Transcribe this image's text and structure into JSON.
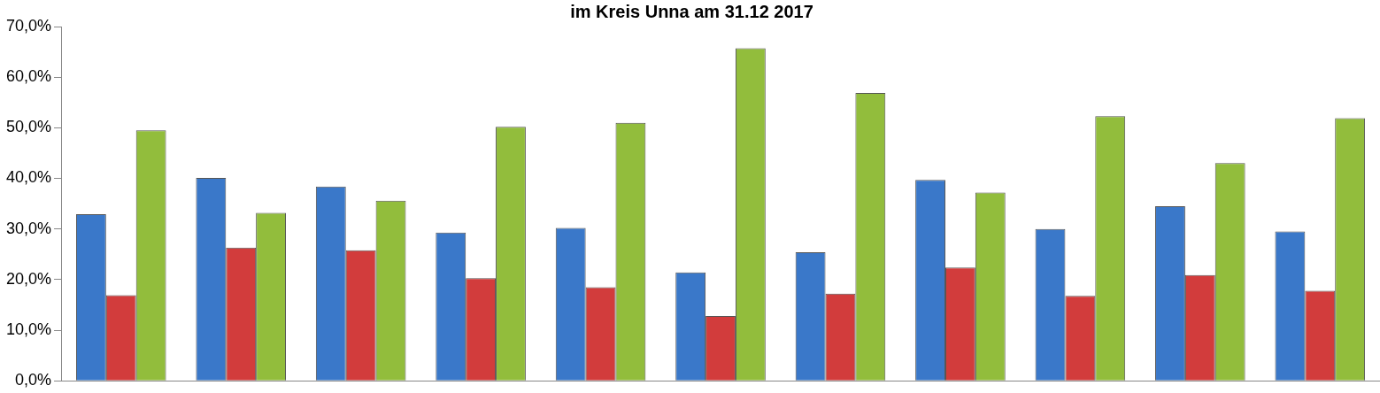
{
  "chart_data": {
    "type": "bar",
    "title": "im Kreis Unna am 31.12 2017",
    "categories": [
      null,
      null,
      null,
      null,
      null,
      null,
      null,
      null,
      null,
      null,
      null
    ],
    "series": [
      {
        "color": "#3a78c9",
        "values": [
          32.9,
          40.1,
          38.4,
          29.3,
          30.2,
          21.4,
          25.4,
          39.7,
          30.0,
          34.5,
          29.5
        ]
      },
      {
        "color": "#d23c3c",
        "values": [
          16.9,
          26.3,
          25.8,
          20.3,
          18.5,
          12.8,
          17.2,
          22.4,
          16.8,
          20.9,
          17.8
        ]
      },
      {
        "color": "#92bd3c",
        "values": [
          49.5,
          33.2,
          35.6,
          50.2,
          51.0,
          65.7,
          56.9,
          37.2,
          52.3,
          43.0,
          51.9
        ]
      }
    ],
    "ylim": [
      0,
      70
    ],
    "yticks": [
      {
        "value": 0,
        "label": "0,0%"
      },
      {
        "value": 10,
        "label": "10,0%"
      },
      {
        "value": 20,
        "label": "20,0%"
      },
      {
        "value": 30,
        "label": "30,0%"
      },
      {
        "value": 40,
        "label": "40,0%"
      },
      {
        "value": 50,
        "label": "50,0%"
      },
      {
        "value": 60,
        "label": "60,0%"
      },
      {
        "value": 70,
        "label": "70,0%"
      }
    ],
    "tick_labels": "y",
    "grid": false,
    "legend": false
  }
}
